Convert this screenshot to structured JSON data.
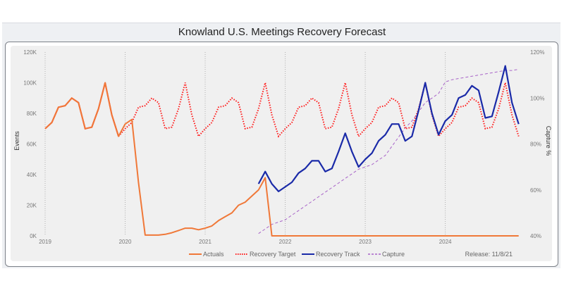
{
  "chart_data": {
    "type": "line",
    "title": "Knowland U.S. Meetings Recovery Forecast",
    "ylabel": "Events",
    "y2label": "Capture %",
    "ylim": [
      0,
      120000
    ],
    "y2lim": [
      40,
      120
    ],
    "yticks": [
      "0K",
      "20K",
      "40K",
      "60K",
      "80K",
      "100K",
      "120K"
    ],
    "y2ticks": [
      "40%",
      "60%",
      "80%",
      "100%",
      "120%"
    ],
    "xticks": [
      "2019",
      "2020",
      "2021",
      "2022",
      "2023",
      "2024"
    ],
    "x_start": "2019-01",
    "x_frequency": "monthly",
    "grid": "vertical dotted at year starts",
    "legend_placement": "bottom",
    "annotation": "Release: 11/8/21",
    "colors": {
      "actuals": "#f07838",
      "target": "#ff1a1a",
      "track": "#1a2aa8",
      "capture": "#a864c8"
    },
    "series": [
      {
        "name": "Actuals",
        "key": "actuals",
        "axis": "left",
        "start": "2019-01",
        "values": [
          70,
          74,
          84,
          85,
          90,
          87,
          70,
          71,
          83,
          100,
          79,
          65,
          73,
          76,
          35,
          0.5,
          0.5,
          0.5,
          1,
          2,
          3.5,
          5,
          5,
          4,
          5,
          6.5,
          10,
          12.5,
          15,
          20,
          22,
          26,
          30,
          38,
          0,
          0,
          0,
          0,
          0,
          0,
          0,
          0,
          0,
          0,
          0,
          0,
          0,
          0,
          0,
          0,
          0,
          0,
          0,
          0,
          0,
          0,
          0,
          0,
          0,
          0,
          0,
          0,
          0,
          0,
          0,
          0,
          0,
          0,
          0,
          0,
          0,
          0
        ]
      },
      {
        "name": "Recovery Target",
        "key": "target",
        "axis": "left",
        "start": "2019-01",
        "values": [
          70,
          74,
          84,
          85,
          90,
          87,
          70,
          71,
          83,
          100,
          79,
          65,
          70,
          74,
          84,
          85,
          90,
          87,
          70,
          71,
          83,
          100,
          79,
          65,
          70,
          74,
          84,
          85,
          90,
          87,
          70,
          71,
          83,
          100,
          79,
          65,
          70,
          74,
          84,
          85,
          90,
          87,
          70,
          71,
          83,
          100,
          79,
          65,
          70,
          74,
          84,
          85,
          90,
          87,
          70,
          71,
          83,
          100,
          79,
          65,
          70,
          74,
          84,
          85,
          90,
          87,
          70,
          71,
          83,
          100,
          79,
          65
        ]
      },
      {
        "name": "Recovery Track",
        "key": "track",
        "axis": "left",
        "start": "2021-09",
        "values": [
          34,
          42,
          34,
          29,
          32,
          35,
          41,
          44,
          49,
          49,
          42,
          44,
          55,
          67,
          55,
          45,
          50,
          54,
          62,
          66,
          73,
          73,
          62,
          65,
          82,
          100,
          80,
          66,
          75,
          79,
          90,
          92,
          98,
          95,
          77,
          78,
          94,
          111,
          87,
          73
        ]
      },
      {
        "name": "Capture",
        "key": "capture",
        "axis": "right",
        "start": "2021-09",
        "values": [
          41,
          43,
          45,
          46,
          47,
          49,
          51,
          53,
          55,
          57,
          59,
          61,
          63,
          65,
          67,
          69,
          70,
          71,
          73,
          75,
          79,
          83,
          87,
          90,
          94,
          98,
          100,
          102,
          107,
          108,
          108.5,
          109,
          109.5,
          110,
          110.5,
          111,
          111.5,
          112,
          112,
          112.5
        ]
      }
    ]
  }
}
